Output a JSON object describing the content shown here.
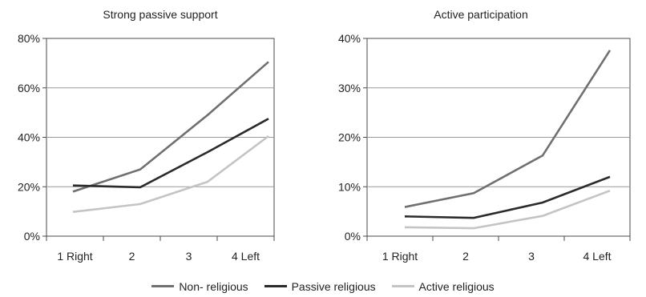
{
  "chart_data": [
    {
      "type": "line",
      "title": "Strong passive support",
      "categories": [
        "1 Right",
        "2",
        "3",
        "4 Left"
      ],
      "ylim": [
        0,
        80
      ],
      "yticks": [
        "0%",
        "20%",
        "40%",
        "60%",
        "80%"
      ],
      "series": [
        {
          "name": "Non- religious",
          "color": "#707070",
          "values": [
            18,
            27,
            49,
            70.5
          ]
        },
        {
          "name": "Passive religious",
          "color": "#2b2b2b",
          "values": [
            20.5,
            19.8,
            34,
            47.5
          ]
        },
        {
          "name": "Active religious",
          "color": "#c4c4c4",
          "values": [
            9.8,
            13,
            22,
            40.5
          ]
        }
      ]
    },
    {
      "type": "line",
      "title": "Active participation",
      "categories": [
        "1 Right",
        "2",
        "3",
        "4 Left"
      ],
      "ylim": [
        0,
        40
      ],
      "yticks": [
        "0%",
        "10%",
        "20%",
        "30%",
        "40%"
      ],
      "series": [
        {
          "name": "Non- religious",
          "color": "#707070",
          "values": [
            5.9,
            8.7,
            16.3,
            37.6
          ]
        },
        {
          "name": "Passive religious",
          "color": "#2b2b2b",
          "values": [
            4,
            3.7,
            6.8,
            12
          ]
        },
        {
          "name": "Active religious",
          "color": "#c4c4c4",
          "values": [
            1.8,
            1.6,
            4.1,
            9.2
          ]
        }
      ]
    }
  ],
  "legend": [
    {
      "label": "Non- religious",
      "color": "#707070"
    },
    {
      "label": "Passive religious",
      "color": "#2b2b2b"
    },
    {
      "label": "Active religious",
      "color": "#c4c4c4"
    }
  ]
}
